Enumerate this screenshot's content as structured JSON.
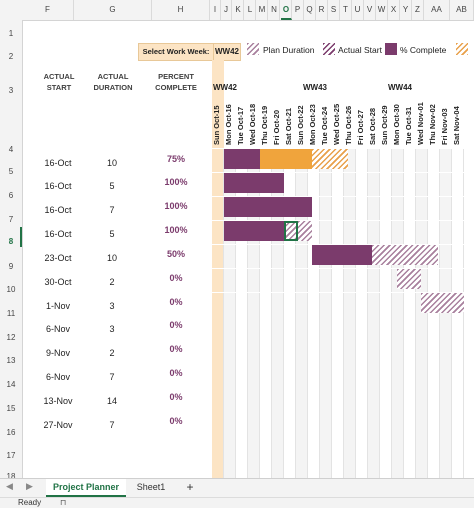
{
  "columns": [
    "F",
    "G",
    "H",
    "I",
    "J",
    "K",
    "L",
    "M",
    "N",
    "O",
    "P",
    "Q",
    "R",
    "S",
    "T",
    "U",
    "V",
    "W",
    "X",
    "Y",
    "Z",
    "AA",
    "AB"
  ],
  "selected_column": "O",
  "rows": [
    "1",
    "2",
    "3",
    "4",
    "5",
    "6",
    "7",
    "8",
    "9",
    "10",
    "11",
    "12",
    "13",
    "14",
    "15",
    "16",
    "17",
    "18"
  ],
  "selected_row": "8",
  "week_selector": {
    "label": "Select Work Week:",
    "value": "WW42"
  },
  "legend": {
    "plan": "Plan Duration",
    "actual": "Actual Start",
    "complete": "% Complete"
  },
  "headers": {
    "actual_start": "ACTUAL\nSTART",
    "actual_duration": "ACTUAL\nDURATION",
    "percent_complete": "PERCENT\nCOMPLETE"
  },
  "weeks": [
    "WW42",
    "WW43",
    "WW44"
  ],
  "days": [
    "Sun Oct-15",
    "Mon Oct-16",
    "Tue Oct-17",
    "Wed Oct-18",
    "Thu Oct-19",
    "Fri Oct-20",
    "Sat Oct-21",
    "Sun Oct-22",
    "Mon Oct-23",
    "Tue Oct-24",
    "Wed Oct-25",
    "Thu Oct-26",
    "Fri Oct-27",
    "Sat Oct-28",
    "Sun Oct-29",
    "Mon Oct-30",
    "Tue Oct-31",
    "Wed Nov-01",
    "Thu Nov-02",
    "Fri Nov-03",
    "Sat Nov-04"
  ],
  "tasks": [
    {
      "start": "16-Oct",
      "duration": "10",
      "percent": "75%"
    },
    {
      "start": "16-Oct",
      "duration": "5",
      "percent": "100%"
    },
    {
      "start": "16-Oct",
      "duration": "7",
      "percent": "100%"
    },
    {
      "start": "16-Oct",
      "duration": "5",
      "percent": "100%"
    },
    {
      "start": "23-Oct",
      "duration": "10",
      "percent": "50%"
    },
    {
      "start": "30-Oct",
      "duration": "2",
      "percent": "0%"
    },
    {
      "start": "1-Nov",
      "duration": "3",
      "percent": "0%"
    },
    {
      "start": "6-Nov",
      "duration": "3",
      "percent": "0%"
    },
    {
      "start": "9-Nov",
      "duration": "2",
      "percent": "0%"
    },
    {
      "start": "6-Nov",
      "duration": "7",
      "percent": "0%"
    },
    {
      "start": "13-Nov",
      "duration": "14",
      "percent": "0%"
    },
    {
      "start": "27-Nov",
      "duration": "7",
      "percent": "0%"
    }
  ],
  "sheet_tabs": [
    "Project Planner",
    "Sheet1"
  ],
  "add_sheet": "+",
  "status": "Ready",
  "colors": {
    "accent": "#217346",
    "bar": "#7b3b6c",
    "orange": "#f0a43c",
    "highlight": "#fce4c4"
  }
}
